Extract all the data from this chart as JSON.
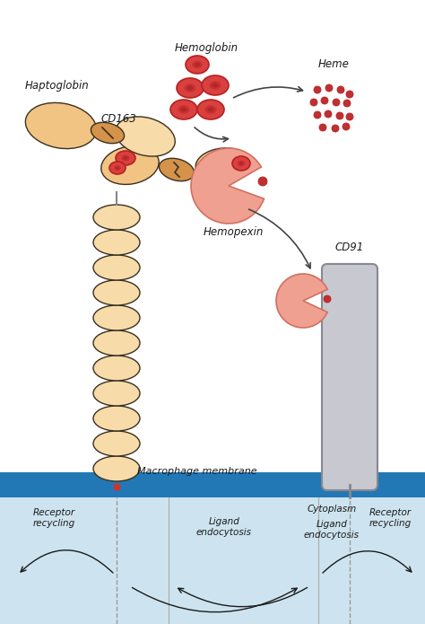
{
  "bg_color": "#ffffff",
  "membrane_color": "#2278b5",
  "cytoplasm_color": "#cde4f0",
  "tan": "#f2c483",
  "tan_dark": "#e8a850",
  "tan_light": "#f7dba8",
  "tan_connector": "#d4924a",
  "red_dark": "#b82020",
  "red_mid": "#cc3333",
  "red_fill": "#d94040",
  "heme_fill": "#c03030",
  "salmon": "#f0a090",
  "salmon_dark": "#d07060",
  "gray_fill": "#c8c8d0",
  "gray_edge": "#888890",
  "outline": "#3a3020",
  "text_dark": "#1a1a1a",
  "arrow_color": "#444444",
  "labels": {
    "haptoglobin": "Haptoglobin",
    "hemoglobin": "Hemoglobin",
    "heme": "Heme",
    "hemopexin": "Hemopexin",
    "cd163": "CD163",
    "cd91": "CD91",
    "macrophage_membrane": "Macrophage membrane",
    "receptor_recycling_left": "Receptor\nrecycling",
    "ligand_endocytosis_left": "Ligand\nendocytosis",
    "cytoplasm": "Cytoplasm",
    "ligand_endocytosis_right": "Ligand\nendocytosis",
    "receptor_recycling_right": "Receptor\nrecycling"
  }
}
